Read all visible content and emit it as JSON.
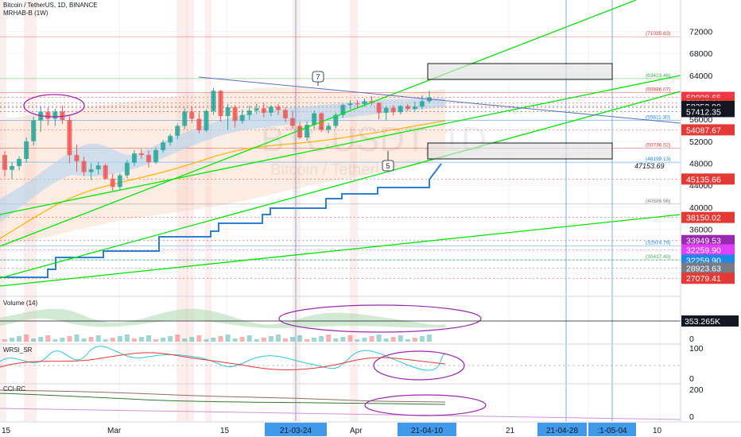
{
  "header": {
    "symbol_line": "Bitcoin / TetherUS, 1D, BINANCE",
    "indicator_line": "MRHAB-B (1W)"
  },
  "watermark": {
    "ticker": "BTCUSDT, 1D",
    "name": "Bitcoin / TetherUS"
  },
  "panes": {
    "volume": "Volume (14)",
    "wrsi": "WRSI_SR",
    "cci": "CCI-RC"
  },
  "chart_data": {
    "type": "candlestick",
    "symbol": "BTCUSDT",
    "interval": "1D",
    "exchange": "BINANCE",
    "y_ticks": [
      72000,
      68000,
      64000,
      60000,
      56000,
      52000,
      48000,
      44000,
      40000,
      36000,
      32000,
      28000
    ],
    "ylim": [
      24800,
      74000
    ],
    "candles_ohlc": [
      [
        49500,
        50200,
        45600,
        46800
      ],
      [
        46800,
        48200,
        45100,
        47500
      ],
      [
        47500,
        49300,
        46700,
        48800
      ],
      [
        48800,
        52700,
        48100,
        52000
      ],
      [
        52000,
        56500,
        51200,
        55800
      ],
      [
        55800,
        58300,
        53700,
        57400
      ],
      [
        57400,
        58100,
        54900,
        56100
      ],
      [
        56100,
        57900,
        54800,
        57400
      ],
      [
        57400,
        58500,
        55200,
        55900
      ],
      [
        55900,
        56500,
        48000,
        49500
      ],
      [
        49500,
        51400,
        46500,
        48400
      ],
      [
        48400,
        49200,
        45700,
        46400
      ],
      [
        46400,
        48000,
        45000,
        46900
      ],
      [
        46900,
        48300,
        46000,
        47600
      ],
      [
        47600,
        47900,
        45000,
        45200
      ],
      [
        45200,
        46100,
        43000,
        43700
      ],
      [
        43700,
        46200,
        43200,
        45800
      ],
      [
        45800,
        48600,
        45300,
        48100
      ],
      [
        48100,
        50400,
        47500,
        49800
      ],
      [
        49800,
        50600,
        48800,
        49500
      ],
      [
        49500,
        50300,
        47200,
        48200
      ],
      [
        48200,
        50900,
        47900,
        50400
      ],
      [
        50400,
        52300,
        49900,
        51800
      ],
      [
        51800,
        53400,
        51200,
        53000
      ],
      [
        53000,
        55200,
        52400,
        54800
      ],
      [
        54800,
        58000,
        54200,
        57400
      ],
      [
        57400,
        58300,
        55400,
        56100
      ],
      [
        56100,
        57500,
        53400,
        54000
      ],
      [
        54000,
        57800,
        53700,
        57500
      ],
      [
        57500,
        61700,
        56800,
        61200
      ],
      [
        61200,
        61300,
        55600,
        56600
      ],
      [
        56600,
        58800,
        54100,
        58200
      ],
      [
        58200,
        58600,
        54500,
        55700
      ],
      [
        55700,
        57800,
        55200,
        56800
      ],
      [
        56800,
        58500,
        55900,
        57600
      ],
      [
        57600,
        58900,
        57000,
        58000
      ],
      [
        58000,
        58900,
        56400,
        57200
      ],
      [
        57200,
        58600,
        56600,
        58300
      ],
      [
        58300,
        58800,
        56800,
        57700
      ],
      [
        57700,
        58200,
        55500,
        56200
      ],
      [
        56200,
        57600,
        54300,
        54800
      ],
      [
        54800,
        55400,
        52400,
        52700
      ],
      [
        52700,
        55600,
        52100,
        55000
      ],
      [
        55000,
        57600,
        54300,
        57100
      ],
      [
        57100,
        57300,
        53700,
        54100
      ],
      [
        54100,
        55300,
        53500,
        54800
      ],
      [
        54800,
        57200,
        54400,
        56800
      ],
      [
        56800,
        58800,
        56300,
        58600
      ],
      [
        58600,
        59500,
        57800,
        58900
      ],
      [
        58900,
        59500,
        58100,
        58800
      ],
      [
        58800,
        59800,
        58300,
        59300
      ],
      [
        59300,
        60200,
        58600,
        59000
      ],
      [
        59000,
        59100,
        56000,
        57200
      ],
      [
        57200,
        58400,
        55800,
        58100
      ],
      [
        58100,
        58600,
        56700,
        57300
      ],
      [
        57300,
        58600,
        56900,
        58400
      ],
      [
        58400,
        58800,
        57500,
        57900
      ],
      [
        57900,
        59200,
        57500,
        58300
      ],
      [
        58300,
        60400,
        57800,
        59300
      ],
      [
        59300,
        61200,
        58900,
        60000
      ]
    ],
    "price_labels": [
      {
        "value": 71035.63,
        "text": "(71035.63)",
        "color": "#e53935"
      },
      {
        "value": 63423.46,
        "text": "(63423.46)",
        "color": "#4caf50"
      },
      {
        "value": 60886.07,
        "text": "(60886.07)",
        "color": "#e53935"
      },
      {
        "value": 55811.3,
        "text": "(55811.30)",
        "color": "#1e88e5"
      },
      {
        "value": 50736.52,
        "text": "(50736.52)",
        "color": "#e53935"
      },
      {
        "value": 48199.13,
        "text": "(48199.13)",
        "color": "#1e88e5"
      },
      {
        "value": 40586.96,
        "text": "(40586.96)",
        "color": "#787b86"
      },
      {
        "value": 32974.79,
        "text": "(32974.79)",
        "color": "#1e88e5"
      },
      {
        "value": 30437.4,
        "text": "(30437.40)",
        "color": "#4caf50"
      }
    ],
    "price_tags": [
      {
        "value": 59998.65,
        "text": "59998.65",
        "bg": "#f23645",
        "fg": "#ffffff"
      },
      {
        "value": 59998.65,
        "text": "01:09:27",
        "bg": "#f23645",
        "fg": "#ffffff",
        "offset": 1
      },
      {
        "value": 58968.31,
        "text": "58968.31",
        "bg": "#e53935",
        "fg": "#ffffff"
      },
      {
        "value": 58352.8,
        "text": "58352.80",
        "bg": "#131722",
        "fg": "#ffffff"
      },
      {
        "value": 57412.35,
        "text": "57412.35",
        "bg": "#131722",
        "fg": "#ffffff"
      },
      {
        "value": 54087.67,
        "text": "54087.67",
        "bg": "#e53935",
        "fg": "#ffffff"
      },
      {
        "value": 45135.66,
        "text": "45135.66",
        "bg": "#e53935",
        "fg": "#ffffff"
      },
      {
        "value": 38150.02,
        "text": "38150.02",
        "bg": "#e53935",
        "fg": "#ffffff"
      },
      {
        "value": 33949.53,
        "text": "33949.53",
        "bg": "#9c27b0",
        "fg": "#ffffff"
      },
      {
        "value": 32259.9,
        "text": "32259.90",
        "bg": "#e040fb",
        "fg": "#ffffff"
      },
      {
        "value": 32259.9,
        "text": "32259.90",
        "bg": "#1e88e5",
        "fg": "#ffffff",
        "offset": 1
      },
      {
        "value": 28923.63,
        "text": "28923.63",
        "bg": "#787b86",
        "fg": "#ffffff"
      },
      {
        "value": 27079.41,
        "text": "27079.41",
        "bg": "#e53935",
        "fg": "#ffffff"
      }
    ],
    "midline_label": "47153.69",
    "wave_labels": [
      "7",
      "5"
    ],
    "volume_axis": [
      "0"
    ],
    "volume_tag": "353.265K",
    "wrsi_axis": [
      "100",
      "0"
    ],
    "cci_axis": [
      "200",
      "0"
    ],
    "x_ticks": [
      "15",
      "Mar",
      "15",
      "Apr",
      "21",
      "10"
    ],
    "x_highlights": [
      "21-03-24",
      "21-04-10",
      "21-04-28",
      ":1-05-04"
    ]
  },
  "colors": {
    "up": "#26a69a",
    "down": "#ef5350",
    "trend_green": "#00e600",
    "cloud_orange": "#f7c9a8",
    "cloud_blue": "#b3d4f0",
    "step_line": "#2f80d1",
    "circle": "#9c27b0",
    "axis_highlight": "#1e88e5"
  }
}
